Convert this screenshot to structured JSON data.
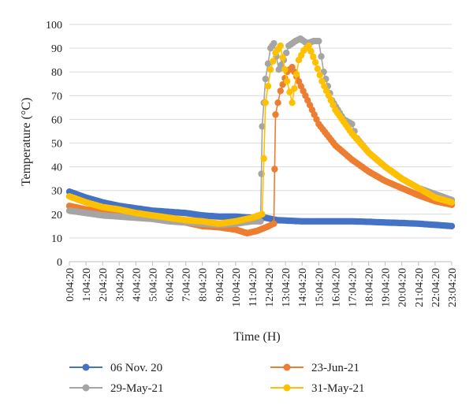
{
  "chart_data": {
    "type": "line",
    "xlabel": "Time (H)",
    "ylabel": "Temperature (°C)",
    "ylim": [
      0,
      100
    ],
    "yticks": [
      0,
      10,
      20,
      30,
      40,
      50,
      60,
      70,
      80,
      90,
      100
    ],
    "xlim": [
      0,
      23
    ],
    "categories": [
      "0:04:20",
      "1:04:20",
      "2:04:20",
      "3:04:20",
      "4:04:20",
      "5:04:20",
      "6:04:20",
      "7:04:20",
      "8:04:20",
      "9:04:20",
      "10:04:20",
      "11:04:20",
      "12:04:20",
      "13:04:20",
      "14:04:20",
      "15:04:20",
      "16:04:20",
      "17:04:20",
      "18:04:20",
      "19:04:20",
      "20:04:20",
      "21:04:20",
      "22:04:20",
      "23:04:20"
    ],
    "grid": "horizontal",
    "legend_position": "bottom",
    "series": [
      {
        "name": "06 Nov. 20",
        "color": "#4472c4",
        "points": [
          [
            0,
            29.5
          ],
          [
            1,
            27
          ],
          [
            2,
            25
          ],
          [
            3,
            23.5
          ],
          [
            4,
            22.5
          ],
          [
            5,
            21.5
          ],
          [
            6,
            21
          ],
          [
            7,
            20.5
          ],
          [
            8,
            19.5
          ],
          [
            9,
            19
          ],
          [
            10,
            19
          ],
          [
            11,
            18.5
          ],
          [
            11.8,
            18.5
          ],
          [
            12.5,
            17.5
          ],
          [
            14,
            17
          ],
          [
            15,
            17
          ],
          [
            16,
            17
          ],
          [
            17,
            17
          ],
          [
            18,
            16.8
          ],
          [
            19,
            16.5
          ],
          [
            20,
            16.3
          ],
          [
            21,
            16
          ],
          [
            22,
            15.5
          ],
          [
            23,
            15
          ]
        ]
      },
      {
        "name": "23-Jun-21",
        "color": "#ed7d31",
        "points": [
          [
            0,
            23.5
          ],
          [
            1,
            22
          ],
          [
            2,
            21
          ],
          [
            3,
            20
          ],
          [
            4,
            19
          ],
          [
            5,
            18.5
          ],
          [
            6,
            18
          ],
          [
            7,
            16.5
          ],
          [
            8,
            15
          ],
          [
            9,
            14.5
          ],
          [
            10,
            13.5
          ],
          [
            10.7,
            12
          ],
          [
            11.3,
            13
          ],
          [
            12,
            15
          ],
          [
            12.3,
            16
          ],
          [
            12.4,
            62
          ],
          [
            12.7,
            72
          ],
          [
            13.1,
            80
          ],
          [
            13.4,
            82
          ],
          [
            13.8,
            76
          ],
          [
            14.2,
            70
          ],
          [
            14.6,
            64
          ],
          [
            15,
            58
          ],
          [
            16,
            49
          ],
          [
            17,
            43
          ],
          [
            18,
            38
          ],
          [
            19,
            34
          ],
          [
            20,
            31
          ],
          [
            21,
            28
          ],
          [
            22,
            25.5
          ],
          [
            23,
            24
          ]
        ]
      },
      {
        "name": "29-May-21",
        "color": "#a5a5a5",
        "points": [
          [
            0,
            21.5
          ],
          [
            1,
            20.5
          ],
          [
            2,
            19.5
          ],
          [
            3,
            19
          ],
          [
            4,
            18.5
          ],
          [
            5,
            18
          ],
          [
            6,
            17
          ],
          [
            7,
            16.5
          ],
          [
            8,
            16
          ],
          [
            9,
            15.5
          ],
          [
            10,
            16
          ],
          [
            11,
            17
          ],
          [
            11.5,
            17
          ],
          [
            11.6,
            57
          ],
          [
            11.8,
            77
          ],
          [
            12.1,
            90
          ],
          [
            12.3,
            92
          ],
          [
            12.6,
            81
          ],
          [
            12.9,
            85
          ],
          [
            13.2,
            91
          ],
          [
            13.6,
            93
          ],
          [
            13.9,
            94
          ],
          [
            14.3,
            92
          ],
          [
            14.7,
            93
          ],
          [
            15,
            93
          ],
          [
            15.3,
            80
          ],
          [
            15.8,
            68
          ],
          [
            16.5,
            60
          ],
          [
            17,
            58
          ],
          [
            17.3,
            52
          ],
          [
            18,
            46
          ],
          [
            19,
            40
          ],
          [
            20,
            35
          ],
          [
            21,
            31
          ],
          [
            22,
            28.5
          ],
          [
            23,
            26
          ]
        ]
      },
      {
        "name": "31-May-21",
        "color": "#ffc000",
        "points": [
          [
            0,
            27.5
          ],
          [
            1,
            25
          ],
          [
            2,
            23
          ],
          [
            3,
            22
          ],
          [
            4,
            20.5
          ],
          [
            5,
            19.5
          ],
          [
            6,
            18.5
          ],
          [
            7,
            17.5
          ],
          [
            8,
            17
          ],
          [
            9,
            16
          ],
          [
            10,
            17
          ],
          [
            11,
            18.5
          ],
          [
            11.6,
            20
          ],
          [
            11.8,
            67
          ],
          [
            12.1,
            81
          ],
          [
            12.4,
            88
          ],
          [
            12.7,
            91
          ],
          [
            13.1,
            76
          ],
          [
            13.4,
            67
          ],
          [
            13.8,
            85
          ],
          [
            14.1,
            89
          ],
          [
            14.4,
            91
          ],
          [
            14.8,
            84
          ],
          [
            15.2,
            76
          ],
          [
            16,
            64
          ],
          [
            17,
            54
          ],
          [
            18,
            46
          ],
          [
            19,
            40
          ],
          [
            20,
            35
          ],
          [
            21,
            31
          ],
          [
            22,
            27
          ],
          [
            23,
            25
          ]
        ]
      }
    ]
  }
}
